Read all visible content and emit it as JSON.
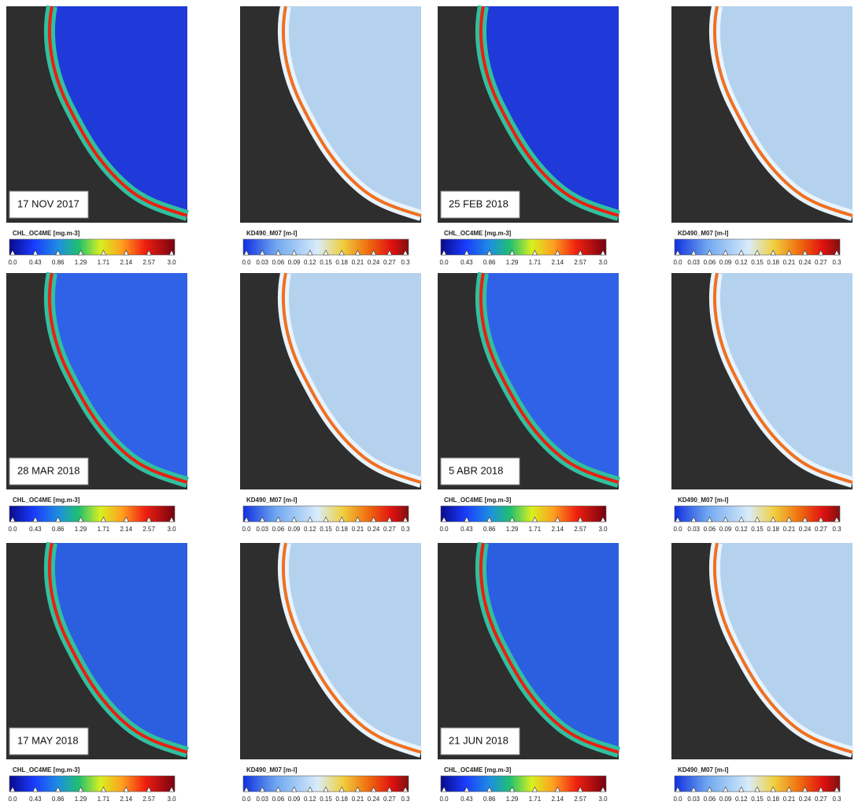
{
  "dates": [
    [
      "17 NOV 2017",
      "25 FEB 2018"
    ],
    [
      "28 MAR 2018",
      "5 ABR 2018"
    ],
    [
      "17 MAY 2018",
      "21 JUN 2018"
    ]
  ],
  "chl_scale": {
    "label": "CHL_OC4ME [mg.m-3]",
    "ticks": [
      "0.0",
      "0.43",
      "0.86",
      "1.29",
      "1.71",
      "2.14",
      "2.57",
      "3.0"
    ]
  },
  "kd_scale": {
    "label": "KD490_M07 [m-l]",
    "ticks": [
      "0.0",
      "0.03",
      "0.06",
      "0.09",
      "0.12",
      "0.15",
      "0.18",
      "0.21",
      "0.24",
      "0.27",
      "0.3"
    ]
  }
}
